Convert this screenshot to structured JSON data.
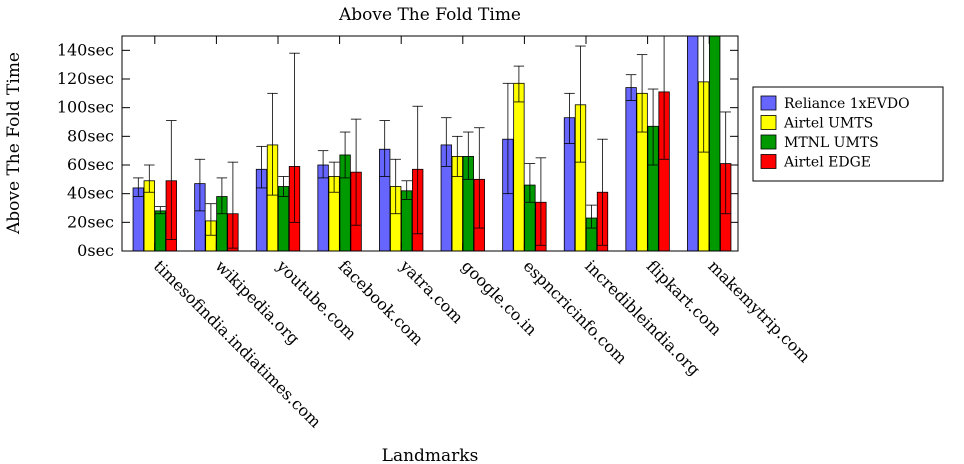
{
  "chart_data": {
    "type": "bar",
    "title": "Above The Fold Time",
    "xlabel": "Landmarks",
    "ylabel": "Above The Fold Time",
    "ylim": [
      0,
      150
    ],
    "ytick_values": [
      0,
      20,
      40,
      60,
      80,
      100,
      120,
      140
    ],
    "ytick_labels": [
      "0sec",
      "20sec",
      "40sec",
      "60sec",
      "80sec",
      "100sec",
      "120sec",
      "140sec"
    ],
    "grid": false,
    "legend_position": "right",
    "categories": [
      "timesofindia.indiatimes.com",
      "wikipedia.org",
      "youtube.com",
      "facebook.com",
      "yatra.com",
      "google.co.in",
      "espncricinfo.com",
      "incredibleindia.org",
      "flipkart.com",
      "makemytrip.com"
    ],
    "series": [
      {
        "name": "Reliance 1xEVDO",
        "color": "#6666ff",
        "values": [
          44,
          47,
          57,
          60,
          71,
          74,
          78,
          93,
          114,
          150
        ],
        "err_low": [
          38,
          28,
          44,
          51,
          52,
          59,
          40,
          75,
          105,
          150
        ],
        "err_high": [
          51,
          64,
          73,
          70,
          91,
          93,
          117,
          110,
          123,
          150
        ]
      },
      {
        "name": "Airtel UMTS",
        "color": "#ffff00",
        "values": [
          49,
          21,
          74,
          52,
          45,
          66,
          117,
          102,
          110,
          118
        ],
        "err_low": [
          41,
          11,
          39,
          41,
          26,
          52,
          104,
          62,
          83,
          69
        ],
        "err_high": [
          60,
          33,
          110,
          62,
          64,
          80,
          129,
          143,
          137,
          150
        ]
      },
      {
        "name": "MTNL UMTS",
        "color": "#009900",
        "values": [
          28,
          38,
          45,
          67,
          42,
          66,
          46,
          23,
          87,
          150
        ],
        "err_low": [
          26,
          26,
          38,
          51,
          36,
          50,
          34,
          16,
          60,
          150
        ],
        "err_high": [
          31,
          51,
          52,
          83,
          49,
          83,
          61,
          32,
          113,
          150
        ]
      },
      {
        "name": "Airtel EDGE",
        "color": "#ff0000",
        "values": [
          49,
          26,
          59,
          55,
          57,
          50,
          34,
          41,
          111,
          61
        ],
        "err_low": [
          8,
          2,
          20,
          18,
          12,
          16,
          4,
          4,
          64,
          26
        ],
        "err_high": [
          91,
          62,
          138,
          92,
          101,
          86,
          65,
          78,
          150,
          97
        ]
      }
    ]
  }
}
